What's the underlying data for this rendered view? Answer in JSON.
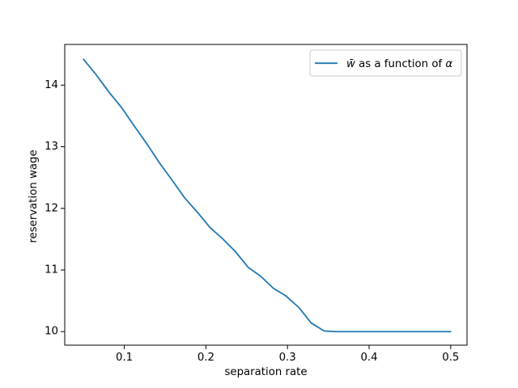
{
  "figure": {
    "background": "#ffffff"
  },
  "chart_data": {
    "type": "line",
    "title": "",
    "xlabel": "separation rate",
    "ylabel": "reservation wage",
    "xlim": [
      0.027,
      0.52
    ],
    "ylim": [
      9.78,
      14.66
    ],
    "xticks": [
      0.1,
      0.2,
      0.3,
      0.4,
      0.5
    ],
    "xtick_labels": [
      "0.1",
      "0.2",
      "0.3",
      "0.4",
      "0.5"
    ],
    "yticks": [
      10,
      11,
      12,
      13,
      14
    ],
    "ytick_labels": [
      "10",
      "11",
      "12",
      "13",
      "14"
    ],
    "grid": false,
    "x": [
      0.05,
      0.066,
      0.081,
      0.097,
      0.112,
      0.128,
      0.143,
      0.159,
      0.174,
      0.19,
      0.205,
      0.221,
      0.236,
      0.252,
      0.267,
      0.283,
      0.298,
      0.314,
      0.329,
      0.345,
      0.36,
      0.376,
      0.391,
      0.407,
      0.422,
      0.438,
      0.453,
      0.469,
      0.484,
      0.5
    ],
    "series": [
      {
        "name": "w̄ as a function of α",
        "color": "#1f77b4",
        "values": [
          14.42,
          14.16,
          13.89,
          13.63,
          13.34,
          13.04,
          12.74,
          12.45,
          12.17,
          11.93,
          11.69,
          11.5,
          11.3,
          11.04,
          10.9,
          10.7,
          10.58,
          10.39,
          10.14,
          10.01,
          10.0,
          10.0,
          10.0,
          10.0,
          10.0,
          10.0,
          10.0,
          10.0,
          10.0,
          10.0
        ]
      }
    ],
    "legend": {
      "position": "upper right",
      "border_color": "#cccccc",
      "background": "#ffffff",
      "entries": [
        {
          "label": "w̄ as a function of α",
          "color": "#1f77b4",
          "label_parts": [
            {
              "text": "w̄",
              "italic": true
            },
            {
              "text": " as a function of ",
              "italic": false
            },
            {
              "text": "α",
              "italic": true
            }
          ]
        }
      ]
    },
    "axis_color": "#000000",
    "line_width": 1.8
  }
}
